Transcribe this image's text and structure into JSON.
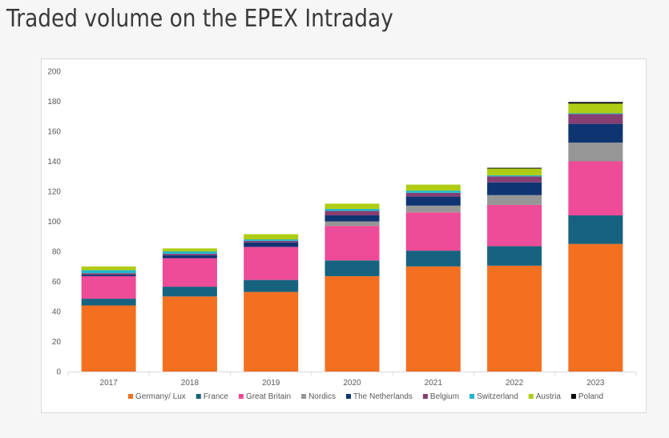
{
  "title": "Traded volume on the EPEX Intraday",
  "chart_data": {
    "type": "bar",
    "stacked": true,
    "title": "Traded volume on the EPEX Intraday",
    "xlabel": "",
    "ylabel": "",
    "ylim": [
      0,
      200
    ],
    "yticks": [
      0,
      20,
      40,
      60,
      80,
      100,
      120,
      140,
      160,
      180,
      200
    ],
    "grid": false,
    "legend_position": "bottom",
    "categories": [
      "2017",
      "2018",
      "2019",
      "2020",
      "2021",
      "2022",
      "2023"
    ],
    "series": [
      {
        "name": "Germany/ Lux",
        "color": "#F37021",
        "values": [
          44,
          50,
          53,
          63.5,
          70,
          70.5,
          85
        ]
      },
      {
        "name": "France",
        "color": "#17637F",
        "values": [
          4.5,
          6.5,
          8,
          10.5,
          10.5,
          13,
          19
        ]
      },
      {
        "name": "Great Britain",
        "color": "#EE4B98",
        "values": [
          15,
          19,
          22,
          23,
          25.5,
          27.5,
          36
        ]
      },
      {
        "name": "Nordics",
        "color": "#969696",
        "values": [
          0,
          0,
          0,
          3,
          4.5,
          6.5,
          12.5
        ]
      },
      {
        "name": "The Netherlands",
        "color": "#0E3572",
        "values": [
          1,
          2,
          3,
          4,
          6,
          8.5,
          12.5
        ]
      },
      {
        "name": "Belgium",
        "color": "#853F72",
        "values": [
          1,
          1,
          1,
          3,
          2.5,
          4,
          6.5
        ]
      },
      {
        "name": "Switzerland",
        "color": "#20B7CF",
        "values": [
          2,
          1.5,
          1,
          1.3,
          1.5,
          0.7,
          0.5
        ]
      },
      {
        "name": "Austria",
        "color": "#AFCC14",
        "values": [
          2.5,
          2,
          3.5,
          3.5,
          4,
          4.5,
          6.5
        ]
      },
      {
        "name": "Poland",
        "color": "#000000",
        "values": [
          0,
          0,
          0,
          0,
          0,
          0.5,
          1
        ]
      }
    ]
  }
}
